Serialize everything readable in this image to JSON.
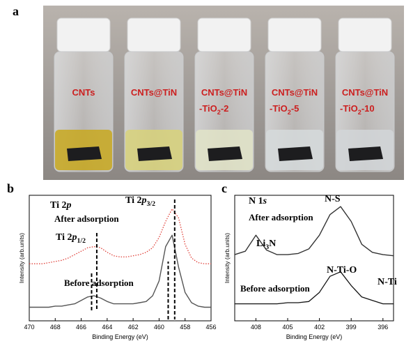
{
  "photo": {
    "panel": "a",
    "vials": [
      {
        "line1": "CNTs"
      },
      {
        "line1": "CNTs@TiN"
      },
      {
        "line1": "CNTs@TiN",
        "line2": {
          "text": "-TiO",
          "sub": "2",
          "post": "-2"
        }
      },
      {
        "line1": "CNTs@TiN",
        "line2": {
          "text": "-TiO",
          "sub": "2",
          "post": "-5"
        }
      },
      {
        "line1": "CNTs@TiN",
        "line2": {
          "text": "-TiO",
          "sub": "2",
          "post": "-10"
        }
      }
    ]
  },
  "chart_data": [
    {
      "type": "line",
      "panel": "b",
      "xlabel": "Binding Energy (eV)",
      "ylabel": "Intensity (arb.units)",
      "xlim": [
        470,
        456
      ],
      "xticks": [
        470,
        468,
        466,
        464,
        462,
        460,
        458,
        456
      ],
      "ylim": [
        0,
        1
      ],
      "x": [
        470,
        469.5,
        469,
        468.5,
        468,
        467.5,
        467,
        466.5,
        466,
        465.5,
        465,
        464.5,
        464,
        463.5,
        463,
        462.5,
        462,
        461.5,
        461,
        460.5,
        460,
        459.5,
        459,
        458.5,
        458,
        457.5,
        457,
        456.5,
        456
      ],
      "series": [
        {
          "name": "After adsorption",
          "color": "#e0413a",
          "values": [
            0.45,
            0.45,
            0.45,
            0.46,
            0.47,
            0.48,
            0.5,
            0.53,
            0.56,
            0.59,
            0.6,
            0.59,
            0.55,
            0.52,
            0.51,
            0.51,
            0.52,
            0.53,
            0.55,
            0.59,
            0.68,
            0.82,
            0.93,
            0.85,
            0.62,
            0.5,
            0.46,
            0.45,
            0.45
          ]
        },
        {
          "name": "Before adsorption",
          "color": "#555555",
          "values": [
            0.07,
            0.07,
            0.07,
            0.07,
            0.08,
            0.08,
            0.09,
            0.1,
            0.13,
            0.16,
            0.17,
            0.15,
            0.12,
            0.1,
            0.1,
            0.1,
            0.1,
            0.11,
            0.12,
            0.17,
            0.3,
            0.6,
            0.7,
            0.42,
            0.2,
            0.11,
            0.08,
            0.07,
            0.07
          ]
        }
      ],
      "peak_lines": [
        465.2,
        464.8,
        459.3,
        458.8
      ],
      "annotations": [
        {
          "text": "Ti 2",
          "italic": "p"
        },
        {
          "text": "Ti 2",
          "italic": "p",
          "sub": "3/2"
        },
        {
          "text": "Ti 2",
          "italic": "p",
          "sub": "1/2"
        }
      ]
    },
    {
      "type": "line",
      "panel": "c",
      "xlabel": "Binding Energy (eV)",
      "ylabel": "Intensity (arb.units)",
      "xlim": [
        410,
        395
      ],
      "xticks": [
        408,
        405,
        402,
        399,
        396
      ],
      "ylim": [
        0,
        1
      ],
      "x": [
        410,
        409,
        408,
        407,
        406,
        405,
        404,
        403,
        402,
        401,
        400,
        399,
        398,
        397,
        396,
        395
      ],
      "series": [
        {
          "name": "After adsorption",
          "color": "#333333",
          "values": [
            0.53,
            0.56,
            0.7,
            0.57,
            0.53,
            0.53,
            0.54,
            0.58,
            0.7,
            0.88,
            0.95,
            0.82,
            0.62,
            0.55,
            0.53,
            0.52
          ]
        },
        {
          "name": "Before adsorption",
          "color": "#111111",
          "values": [
            0.1,
            0.1,
            0.1,
            0.1,
            0.1,
            0.11,
            0.11,
            0.12,
            0.2,
            0.34,
            0.38,
            0.26,
            0.16,
            0.13,
            0.1,
            0.1
          ]
        }
      ],
      "annotations": [
        {
          "text": "N 1",
          "italic": "s"
        },
        {
          "text": "N-S"
        },
        {
          "text": "Li",
          "sub": "3",
          "post": "N"
        },
        {
          "text": "N-Ti-O"
        },
        {
          "text": "N-Ti"
        }
      ]
    }
  ]
}
